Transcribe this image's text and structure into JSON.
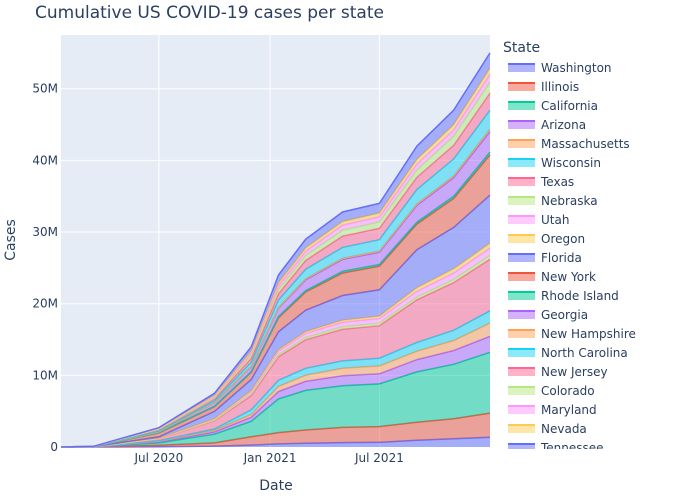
{
  "chart_data": {
    "type": "area",
    "title": "Cumulative US COVID-19 cases per state",
    "xlabel": "Date",
    "ylabel": "Cases",
    "x_ticks": [
      "Jul 2020",
      "Jan 2021",
      "Jul 2021"
    ],
    "y_ticks": [
      "0",
      "10M",
      "20M",
      "30M",
      "40M",
      "50M"
    ],
    "y_tick_values": [
      0,
      10,
      20,
      30,
      40,
      50
    ],
    "ylim": [
      0,
      57.5
    ],
    "y_unit": "millions of cases",
    "x_domain": [
      "2020-01-21",
      "2021-12-31"
    ],
    "x_tick_dates": [
      "2020-07-01",
      "2021-01-01",
      "2021-07-01"
    ],
    "grid": true,
    "background": "#E5ECF6",
    "legend": {
      "title": "State",
      "placement": "right"
    },
    "x": [
      "2020-01-21",
      "2020-03-15",
      "2020-07-01",
      "2020-10-01",
      "2020-12-01",
      "2021-01-15",
      "2021-03-01",
      "2021-05-01",
      "2021-07-01",
      "2021-09-01",
      "2021-11-01",
      "2021-12-31"
    ],
    "total": [
      0,
      0.1,
      2.7,
      7.5,
      14.0,
      24.0,
      29.0,
      32.8,
      34.0,
      42.0,
      47.0,
      55.0
    ],
    "series": [
      {
        "name": "Washington",
        "color": "#636EFA",
        "values": [
          0.0,
          0.001,
          0.03,
          0.09,
          0.17,
          0.28,
          0.34,
          0.39,
          0.42,
          0.6,
          0.73,
          0.85
        ]
      },
      {
        "name": "Illinois",
        "color": "#EF553B",
        "values": [
          0.0,
          0.002,
          0.14,
          0.3,
          0.75,
          1.0,
          1.2,
          1.35,
          1.4,
          1.6,
          1.75,
          2.1
        ]
      },
      {
        "name": "California",
        "color": "#00CC96",
        "values": [
          0.0,
          0.003,
          0.24,
          0.83,
          1.4,
          3.0,
          3.6,
          3.7,
          3.8,
          4.5,
          4.8,
          5.3
        ]
      },
      {
        "name": "Arizona",
        "color": "#AB63FA",
        "values": [
          0.0,
          0.001,
          0.08,
          0.22,
          0.37,
          0.66,
          0.82,
          0.88,
          0.9,
          1.1,
          1.22,
          1.39
        ]
      },
      {
        "name": "Massachusetts",
        "color": "#FFA15A",
        "values": [
          0.0,
          0.002,
          0.11,
          0.14,
          0.24,
          0.45,
          0.56,
          0.66,
          0.71,
          0.75,
          0.88,
          1.15
        ]
      },
      {
        "name": "Wisconsin",
        "color": "#19D3F3",
        "values": [
          0.0,
          0.001,
          0.03,
          0.14,
          0.42,
          0.54,
          0.62,
          0.66,
          0.68,
          0.78,
          0.9,
          1.07
        ]
      },
      {
        "name": "Texas",
        "color": "#FF6692",
        "values": [
          0.0,
          0.002,
          0.17,
          0.8,
          1.3,
          2.1,
          2.6,
          2.8,
          2.9,
          3.8,
          4.2,
          4.5
        ]
      },
      {
        "name": "Nebraska",
        "color": "#B6E880",
        "values": [
          0.0,
          0.0,
          0.02,
          0.05,
          0.13,
          0.18,
          0.2,
          0.22,
          0.22,
          0.25,
          0.28,
          0.34
        ]
      },
      {
        "name": "Utah",
        "color": "#FF97FF",
        "values": [
          0.0,
          0.0,
          0.02,
          0.08,
          0.22,
          0.32,
          0.37,
          0.4,
          0.42,
          0.5,
          0.56,
          0.62
        ]
      },
      {
        "name": "Oregon",
        "color": "#FECB52",
        "values": [
          0.0,
          0.0,
          0.01,
          0.04,
          0.08,
          0.12,
          0.16,
          0.18,
          0.21,
          0.32,
          0.37,
          0.42
        ]
      },
      {
        "name": "Florida",
        "color": "#636EFA",
        "values": [
          0.0,
          0.002,
          0.16,
          0.71,
          1.0,
          1.6,
          1.95,
          2.2,
          2.35,
          3.4,
          3.65,
          4.2
        ]
      },
      {
        "name": "New York",
        "color": "#EF553B",
        "values": [
          0.0,
          0.005,
          0.39,
          0.46,
          0.65,
          1.25,
          1.65,
          2.0,
          2.1,
          2.3,
          2.55,
          3.5
        ]
      },
      {
        "name": "Rhode Island",
        "color": "#00CC96",
        "values": [
          0.0,
          0.0,
          0.02,
          0.03,
          0.06,
          0.1,
          0.13,
          0.15,
          0.15,
          0.16,
          0.19,
          0.24
        ]
      },
      {
        "name": "Georgia",
        "color": "#AB63FA",
        "values": [
          0.0,
          0.001,
          0.08,
          0.32,
          0.45,
          0.75,
          0.98,
          1.05,
          1.1,
          1.5,
          1.65,
          1.8
        ]
      },
      {
        "name": "New Hampshire",
        "color": "#FFA15A",
        "values": [
          0.0,
          0.0,
          0.01,
          0.01,
          0.03,
          0.05,
          0.08,
          0.09,
          0.1,
          0.11,
          0.14,
          0.2
        ]
      },
      {
        "name": "North Carolina",
        "color": "#19D3F3",
        "values": [
          0.0,
          0.001,
          0.07,
          0.21,
          0.38,
          0.68,
          0.88,
          0.98,
          1.01,
          1.3,
          1.5,
          1.65
        ]
      },
      {
        "name": "New Jersey",
        "color": "#FF6692",
        "values": [
          0.0,
          0.002,
          0.17,
          0.21,
          0.35,
          0.55,
          0.8,
          1.0,
          1.02,
          1.1,
          1.2,
          1.5
        ]
      },
      {
        "name": "Colorado",
        "color": "#B6E880",
        "values": [
          0.0,
          0.0,
          0.03,
          0.08,
          0.26,
          0.38,
          0.44,
          0.52,
          0.56,
          0.65,
          0.8,
          0.93
        ]
      },
      {
        "name": "Maryland",
        "color": "#FF97FF",
        "values": [
          0.0,
          0.0,
          0.07,
          0.13,
          0.2,
          0.33,
          0.39,
          0.46,
          0.46,
          0.51,
          0.56,
          0.7
        ]
      },
      {
        "name": "Nevada",
        "color": "#FECB52",
        "values": [
          0.0,
          0.0,
          0.02,
          0.08,
          0.18,
          0.26,
          0.3,
          0.31,
          0.33,
          0.42,
          0.45,
          0.51
        ]
      },
      {
        "name": "Tennessee",
        "color": "#636EFA",
        "values": [
          0.0,
          0.001,
          0.05,
          0.2,
          0.4,
          0.7,
          0.79,
          0.85,
          0.87,
          1.2,
          1.28,
          1.35
        ]
      }
    ]
  }
}
